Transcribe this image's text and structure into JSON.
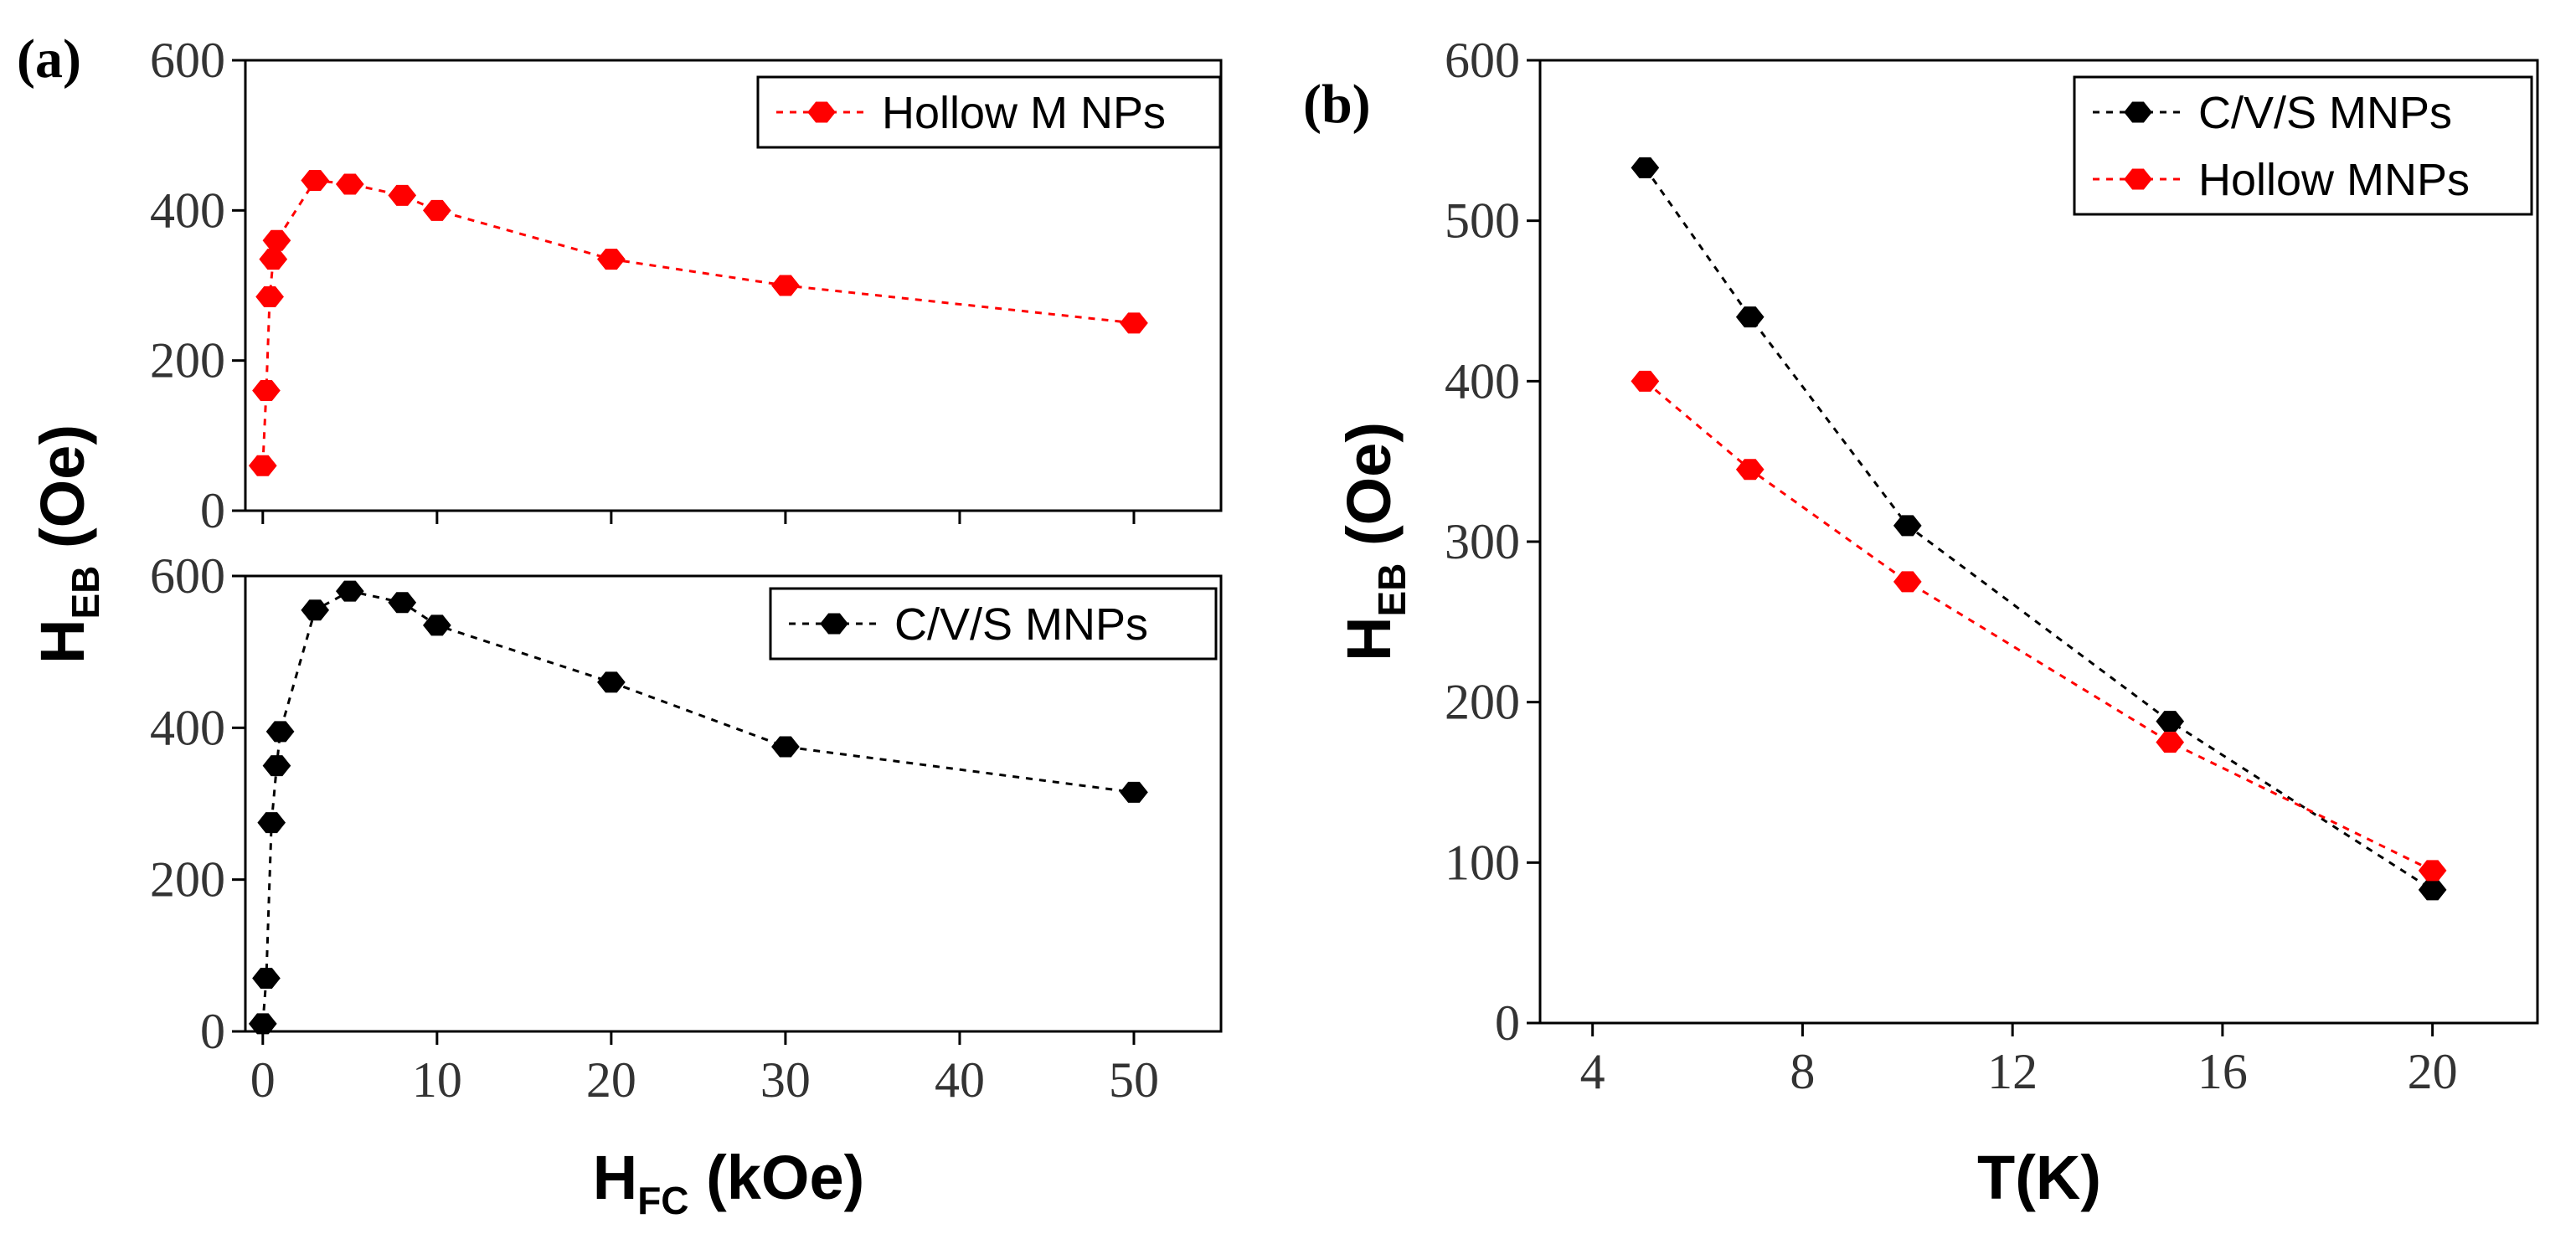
{
  "colors": {
    "hollow": "#ff0000",
    "cvs": "#000000",
    "axis": "#000000"
  },
  "chart_data": [
    {
      "id": "a-top",
      "panel_label": "(a)",
      "type": "line",
      "x": [
        0,
        0.2,
        0.4,
        0.6,
        0.8,
        3,
        5,
        8,
        10,
        20,
        30,
        50
      ],
      "series": [
        {
          "name": "Hollow M NPs",
          "color": "#ff0000",
          "values": [
            60,
            160,
            285,
            335,
            360,
            440,
            435,
            420,
            400,
            335,
            300,
            250
          ]
        }
      ],
      "ylim": [
        0,
        600
      ],
      "yticks": [
        0,
        200,
        400,
        600
      ],
      "xlim": [
        -1,
        55
      ],
      "xticks": [
        0,
        10,
        20,
        30,
        40,
        50
      ],
      "show_xtick_labels": false,
      "legend": "top-right"
    },
    {
      "id": "a-bottom",
      "type": "line",
      "x": [
        0,
        0.2,
        0.5,
        0.8,
        1,
        3,
        5,
        8,
        10,
        20,
        30,
        50
      ],
      "series": [
        {
          "name": "C/V/S MNPs",
          "color": "#000000",
          "values": [
            10,
            70,
            275,
            350,
            395,
            555,
            580,
            565,
            535,
            460,
            375,
            315
          ]
        }
      ],
      "ylim": [
        0,
        600
      ],
      "yticks": [
        0,
        200,
        400,
        600
      ],
      "xlim": [
        -1,
        55
      ],
      "xticks": [
        0,
        10,
        20,
        30,
        40,
        50
      ],
      "show_xtick_labels": true,
      "xlabel": "H",
      "xlabel_sub": "FC",
      "xlabel_rest": " (kOe)",
      "legend": "top-right"
    },
    {
      "id": "b",
      "panel_label": "(b)",
      "type": "line",
      "x": [
        5,
        7,
        10,
        15,
        20
      ],
      "series": [
        {
          "name": "C/V/S MNPs",
          "color": "#000000",
          "values": [
            533,
            440,
            310,
            188,
            83
          ]
        },
        {
          "name": "Hollow MNPs",
          "color": "#ff0000",
          "values": [
            400,
            345,
            275,
            175,
            95
          ]
        }
      ],
      "ylim": [
        0,
        600
      ],
      "yticks": [
        0,
        100,
        200,
        300,
        400,
        500,
        600
      ],
      "xlim": [
        3,
        22
      ],
      "xticks": [
        4,
        8,
        12,
        16,
        20
      ],
      "show_xtick_labels": true,
      "xlabel": "T(K)",
      "ylabel": "H",
      "ylabel_sub": "EB",
      "ylabel_rest": " (Oe)",
      "legend": "top-right"
    }
  ],
  "shared_ylabel": {
    "main": "H",
    "sub": "EB",
    "rest": " (Oe)"
  }
}
